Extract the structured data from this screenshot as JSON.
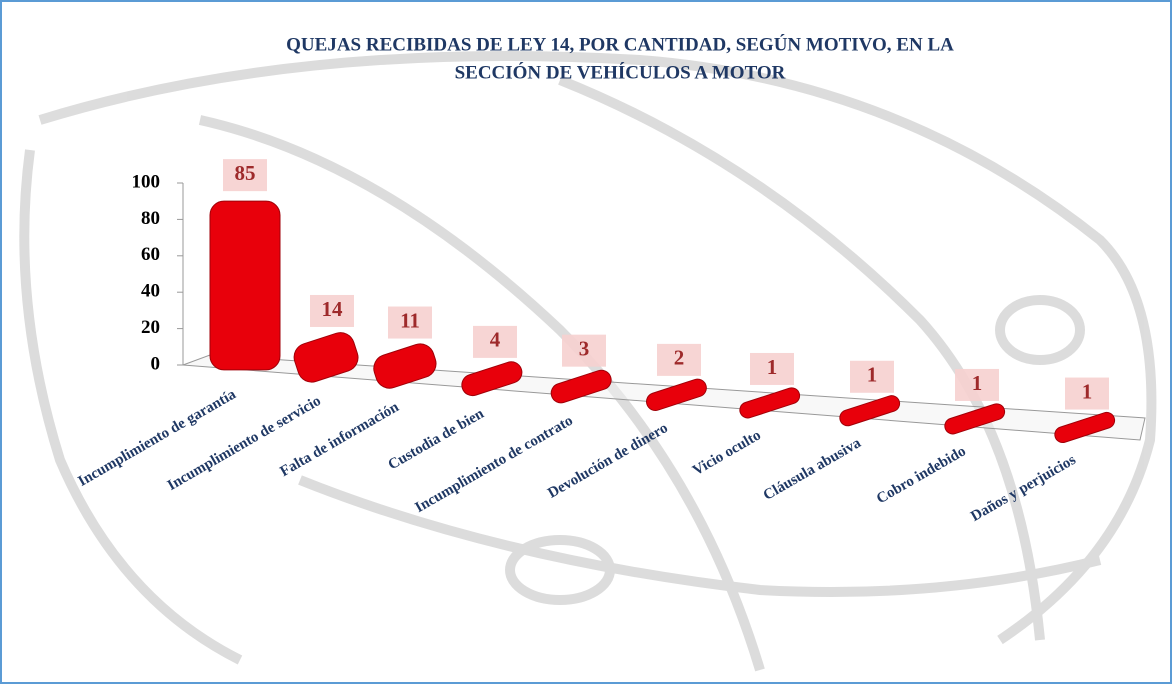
{
  "chart_data": {
    "type": "bar3d",
    "title": [
      "QUEJAS RECIBIDAS DE LEY 14, POR CANTIDAD, SEGÚN MOTIVO, EN LA",
      "SECCIÓN DE VEHÍCULOS A MOTOR"
    ],
    "categories": [
      "Incumplimiento de garantía",
      "Incumplimiento de servicio",
      "Falta de información",
      "Custodia de bien",
      "Incumplimiento de contrato",
      "Devolución de dinero",
      "Vicio oculto",
      "Cláusula abusiva",
      "Cobro indebido",
      "Daños y perjuicios"
    ],
    "values": [
      85,
      14,
      11,
      4,
      3,
      2,
      1,
      1,
      1,
      1
    ],
    "color": "#e8000b",
    "ylim": [
      0,
      100
    ],
    "yticks": [
      0,
      20,
      40,
      60,
      80,
      100
    ]
  }
}
